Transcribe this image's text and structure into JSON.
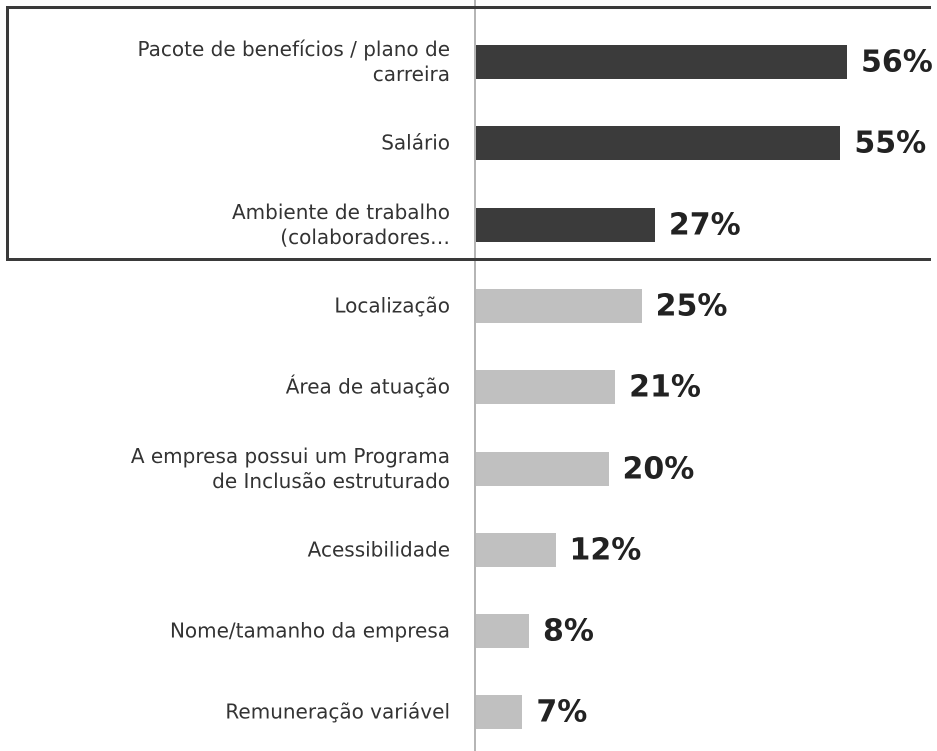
{
  "chart_data": {
    "type": "barh",
    "categories": [
      "Pacote de benefícios / plano de\ncarreira",
      "Salário",
      "Ambiente de trabalho\n(colaboradores…",
      "Localização",
      "Área de atuação",
      "A empresa possui um Programa\nde Inclusão estruturado",
      "Acessibilidade",
      "Nome/tamanho da empresa",
      "Remuneração variável"
    ],
    "values": [
      56,
      55,
      27,
      25,
      21,
      20,
      12,
      8,
      7
    ],
    "value_labels": [
      "56%",
      "55%",
      "27%",
      "25%",
      "21%",
      "20%",
      "12%",
      "8%",
      "7%"
    ],
    "colors": [
      "#3b3b3b",
      "#3b3b3b",
      "#3b3b3b",
      "#c0c0c0",
      "#c0c0c0",
      "#c0c0c0",
      "#c0c0c0",
      "#c0c0c0",
      "#c0c0c0"
    ]
  }
}
